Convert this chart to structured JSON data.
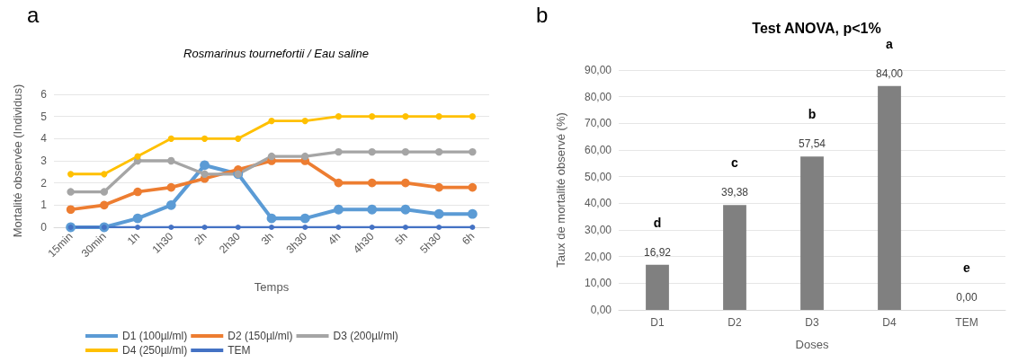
{
  "chart_data": [
    {
      "type": "line",
      "title": "Rosmarinus tournefortii / Eau saline",
      "xlabel": "Temps",
      "ylabel": "Mortalité observée (Individus)",
      "annotations": [
        "a"
      ],
      "categories": [
        "15min",
        "30min",
        "1h",
        "1h30",
        "2h",
        "2h30",
        "3h",
        "3h30",
        "4h",
        "4h30",
        "5h",
        "5h30",
        "6h"
      ],
      "series": [
        {
          "name": "D1 (100µl/ml)",
          "color": "#5b9bd5",
          "values": [
            0,
            0,
            0.4,
            1,
            2.8,
            2.4,
            0.4,
            0.4,
            0.8,
            0.8,
            0.8,
            0.6,
            0.6
          ]
        },
        {
          "name": "D2 (150µl/ml)",
          "color": "#ed7d31",
          "values": [
            0.8,
            1,
            1.6,
            1.8,
            2.2,
            2.6,
            3,
            3,
            2,
            2,
            2,
            1.8,
            1.8
          ]
        },
        {
          "name": "D3 (200µl/ml)",
          "color": "#a5a5a5",
          "values": [
            1.6,
            1.6,
            3,
            3,
            2.4,
            2.4,
            3.2,
            3.2,
            3.4,
            3.4,
            3.4,
            3.4,
            3.4
          ]
        },
        {
          "name": "D4 (250µl/ml)",
          "color": "#ffc000",
          "values": [
            2.4,
            2.4,
            3.2,
            4,
            4,
            4,
            4.8,
            4.8,
            5,
            5,
            5,
            5,
            5
          ]
        },
        {
          "name": "TEM",
          "color": "#4472c4",
          "values": [
            0,
            0,
            0,
            0,
            0,
            0,
            0,
            0,
            0,
            0,
            0,
            0,
            0
          ]
        }
      ],
      "ylim": [
        0,
        6
      ],
      "yticks": [
        0,
        1,
        2,
        3,
        4,
        5,
        6
      ],
      "grid": "y",
      "legend": "bottom",
      "marker": "circle",
      "line_style": "solid"
    },
    {
      "type": "bar",
      "title": "Test ANOVA, p<1%",
      "xlabel": "Doses",
      "ylabel": "Taux de mortalité observé (%)",
      "annotations": [
        "b",
        "d",
        "c",
        "b",
        "a",
        "e"
      ],
      "categories": [
        "D1",
        "D2",
        "D3",
        "D4",
        "TEM"
      ],
      "values": [
        16.92,
        39.38,
        57.54,
        84,
        0
      ],
      "value_labels": [
        "16,92",
        "39,38",
        "57,54",
        "84,00",
        "0,00"
      ],
      "color": "#808080",
      "ylim": [
        0,
        90
      ],
      "yticks": [
        {
          "value": 0,
          "label": "0,00"
        },
        {
          "value": 10,
          "label": "10,00"
        },
        {
          "value": 20,
          "label": "20,00"
        },
        {
          "value": 30,
          "label": "30,00"
        },
        {
          "value": 40,
          "label": "40,00"
        },
        {
          "value": 50,
          "label": "50,00"
        },
        {
          "value": 60,
          "label": "60,00"
        },
        {
          "value": 70,
          "label": "70,00"
        },
        {
          "value": 80,
          "label": "80,00"
        },
        {
          "value": 90,
          "label": "90,00"
        }
      ],
      "grid": "y"
    }
  ]
}
